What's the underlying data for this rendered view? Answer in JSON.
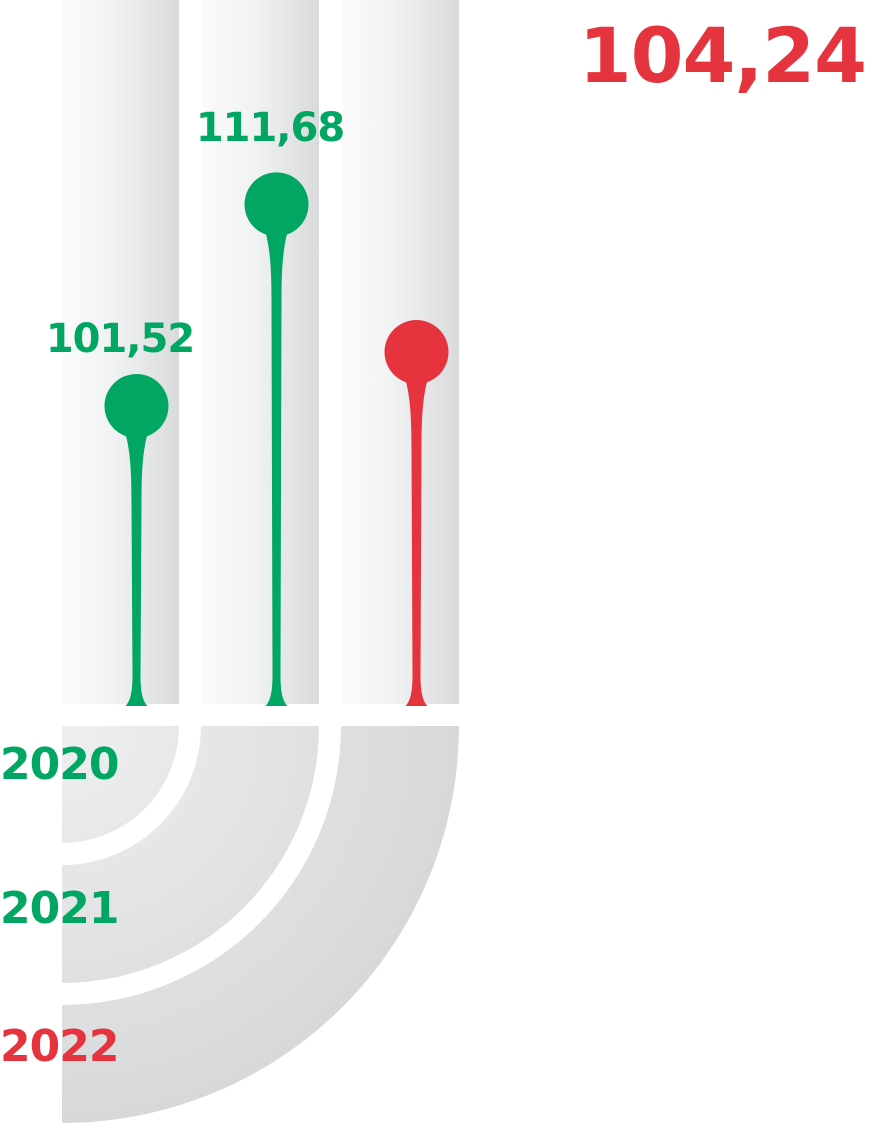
{
  "colors": {
    "green": "#00A661",
    "red": "#E5343D",
    "track_light": "#f3f3f4",
    "track_dark": "#d6d7d9"
  },
  "chart_data": {
    "type": "lollipop",
    "categories": [
      "2020",
      "2021",
      "2022"
    ],
    "values": [
      101.52,
      111.68,
      104.24
    ],
    "value_labels": [
      "101,52",
      "111,68",
      "104,24"
    ],
    "category_colors": [
      "green",
      "green",
      "red"
    ],
    "highlight": {
      "label": "104,24",
      "color": "red"
    },
    "title": "",
    "xlabel": "",
    "ylabel": ""
  }
}
